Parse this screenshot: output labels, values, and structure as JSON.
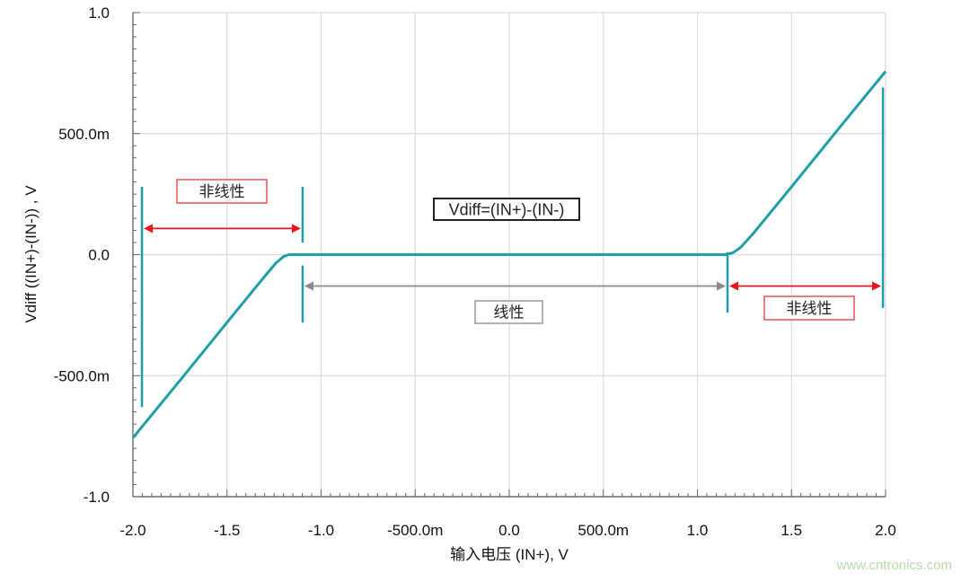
{
  "chart_data": {
    "type": "line",
    "title": "",
    "xlabel": "输入电压 (IN+), V",
    "ylabel": "Vdiff ((IN+)-(IN-)) , V",
    "xlim": [
      -2.0,
      2.0
    ],
    "ylim": [
      -1.0,
      1.0
    ],
    "grid": true,
    "x_ticks": [
      -2.0,
      -1.5,
      -1.0,
      -0.5,
      0.0,
      0.5,
      1.0,
      1.5,
      2.0
    ],
    "x_tick_labels": [
      "-2.0",
      "-1.5",
      "-1.0",
      "-500.0m",
      "0.0",
      "500.0m",
      "1.0",
      "1.5",
      "2.0"
    ],
    "y_ticks": [
      1.0,
      0.5,
      0.0,
      -0.5,
      -1.0
    ],
    "y_tick_labels": [
      "1.0",
      "500.0m",
      "0.0",
      "-500.0m",
      "-1.0"
    ],
    "series": [
      {
        "color": "#1f9ea6",
        "x": [
          -2.0,
          -1.75,
          -1.5,
          -1.3,
          -1.24,
          -1.2,
          -1.17,
          1.15,
          1.19,
          1.23,
          1.3,
          1.5,
          1.75,
          2.0
        ],
        "y": [
          -0.757,
          -0.52,
          -0.28,
          -0.09,
          -0.035,
          -0.008,
          0.0,
          0.0,
          0.008,
          0.03,
          0.09,
          0.28,
          0.52,
          0.757
        ]
      }
    ],
    "annotations": {
      "box_label": "Vdiff=(IN+)-(IN-)",
      "left_nonlinear_label": "非线性",
      "linear_label": "线性",
      "right_nonlinear_label": "非线性",
      "marker_color": "#1f9ea6",
      "nonlinear_arrow_color": "#e8141c",
      "linear_arrow_color": "#8a8a8a",
      "markers_x": [
        -1.952,
        -1.098,
        1.16,
        1.986
      ]
    }
  },
  "watermark": "www.cntronics.com"
}
